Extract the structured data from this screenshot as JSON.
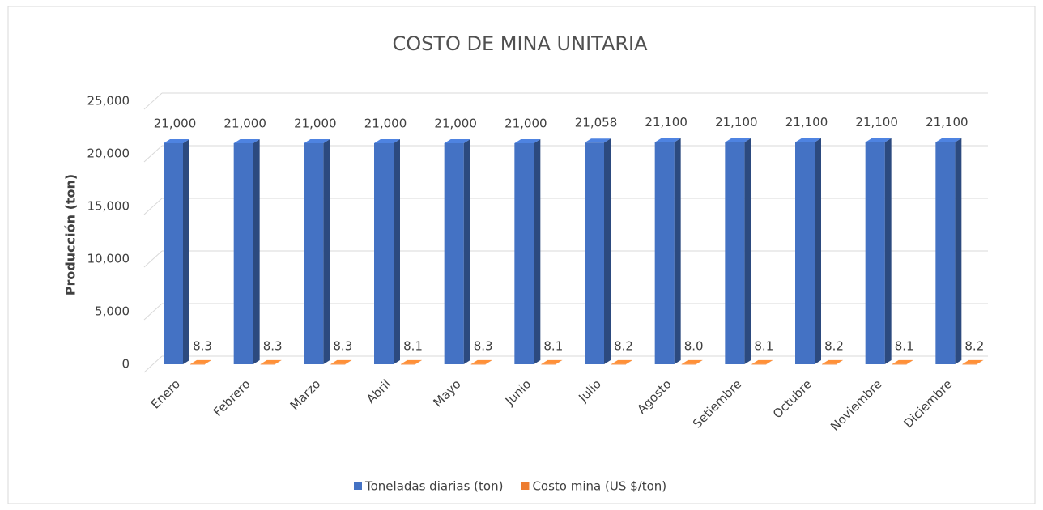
{
  "chart_data": {
    "type": "bar3d",
    "title": "COSTO DE MINA UNITARIA",
    "y_label": "Producción (ton)",
    "categories": [
      "Enero",
      "Febrero",
      "Marzo",
      "Abril",
      "Mayo",
      "Junio",
      "Julio",
      "Agosto",
      "Setiembre",
      "Octubre",
      "Noviembre",
      "Diciembre"
    ],
    "series": [
      {
        "name": "Toneladas diarias (ton)",
        "color": "#4472c4",
        "values": [
          21000,
          21000,
          21000,
          21000,
          21000,
          21000,
          21058,
          21100,
          21100,
          21100,
          21100,
          21100
        ],
        "value_labels": [
          "21,000",
          "21,000",
          "21,000",
          "21,000",
          "21,000",
          "21,000",
          "21,058",
          "21,100",
          "21,100",
          "21,100",
          "21,100",
          "21,100"
        ]
      },
      {
        "name": "Costo mina (US $/ton)",
        "color": "#ed7d31",
        "values": [
          8.3,
          8.3,
          8.3,
          8.1,
          8.3,
          8.1,
          8.2,
          8.0,
          8.1,
          8.2,
          8.1,
          8.2
        ],
        "value_labels": [
          "8.3",
          "8.3",
          "8.3",
          "8.1",
          "8.3",
          "8.1",
          "8.2",
          "8.0",
          "8.1",
          "8.2",
          "8.1",
          "8.2"
        ]
      }
    ],
    "ylim": [
      0,
      25000
    ],
    "yticks": [
      0,
      {
        "value": 5000,
        "label": "5,000"
      },
      {
        "value": 10000,
        "label": "10,000"
      },
      {
        "value": 15000,
        "label": "15,000"
      },
      {
        "value": 20000,
        "label": "20,000"
      },
      {
        "value": 25000,
        "label": "25,000"
      }
    ],
    "grid": true,
    "legend": "bottom"
  }
}
